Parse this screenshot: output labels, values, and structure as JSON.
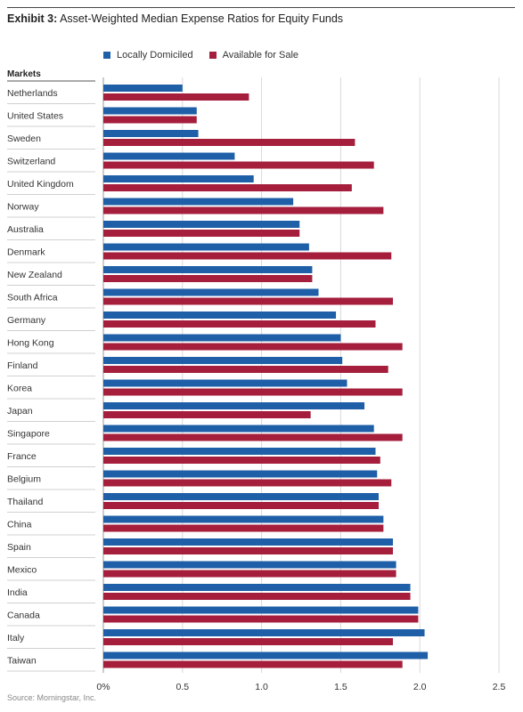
{
  "title": {
    "lead": "Exhibit 3:",
    "text": "Asset-Weighted Median Expense Ratios for Equity Funds"
  },
  "legend": {
    "position": "top",
    "items": [
      {
        "label": "Locally Domiciled",
        "color": "#1f5fa8"
      },
      {
        "label": "Available for Sale",
        "color": "#a51e3c"
      }
    ]
  },
  "column_header": "Markets",
  "source": "Source: Morningstar, Inc.",
  "chart_data": {
    "type": "bar",
    "orientation": "horizontal",
    "title": "Asset-Weighted Median Expense Ratios for Equity Funds",
    "categories": [
      "Netherlands",
      "United States",
      "Sweden",
      "Switzerland",
      "United Kingdom",
      "Norway",
      "Australia",
      "Denmark",
      "New Zealand",
      "South Africa",
      "Germany",
      "Hong Kong",
      "Finland",
      "Korea",
      "Japan",
      "Singapore",
      "France",
      "Belgium",
      "Thailand",
      "China",
      "Spain",
      "Mexico",
      "India",
      "Canada",
      "Italy",
      "Taiwan"
    ],
    "series": [
      {
        "name": "Locally Domiciled",
        "color": "#1f5fa8",
        "values": [
          0.5,
          0.59,
          0.6,
          0.83,
          0.95,
          1.2,
          1.24,
          1.3,
          1.32,
          1.36,
          1.47,
          1.5,
          1.51,
          1.54,
          1.65,
          1.71,
          1.72,
          1.73,
          1.74,
          1.77,
          1.83,
          1.85,
          1.94,
          1.99,
          2.03,
          2.05
        ]
      },
      {
        "name": "Available for Sale",
        "color": "#a51e3c",
        "values": [
          0.92,
          0.59,
          1.59,
          1.71,
          1.57,
          1.77,
          1.24,
          1.82,
          1.32,
          1.83,
          1.72,
          1.89,
          1.8,
          1.89,
          1.31,
          1.89,
          1.75,
          1.82,
          1.74,
          1.77,
          1.83,
          1.85,
          1.94,
          1.99,
          1.83,
          1.89
        ]
      }
    ],
    "x_ticks": [
      "0%",
      "0.5",
      "1.0",
      "1.5",
      "2.0",
      "2.5"
    ],
    "x_tick_values": [
      0,
      0.5,
      1.0,
      1.5,
      2.0,
      2.5
    ],
    "xlim": [
      0,
      2.5
    ],
    "xlabel": "",
    "ylabel": "",
    "grid": true,
    "legend_placement": "top"
  }
}
